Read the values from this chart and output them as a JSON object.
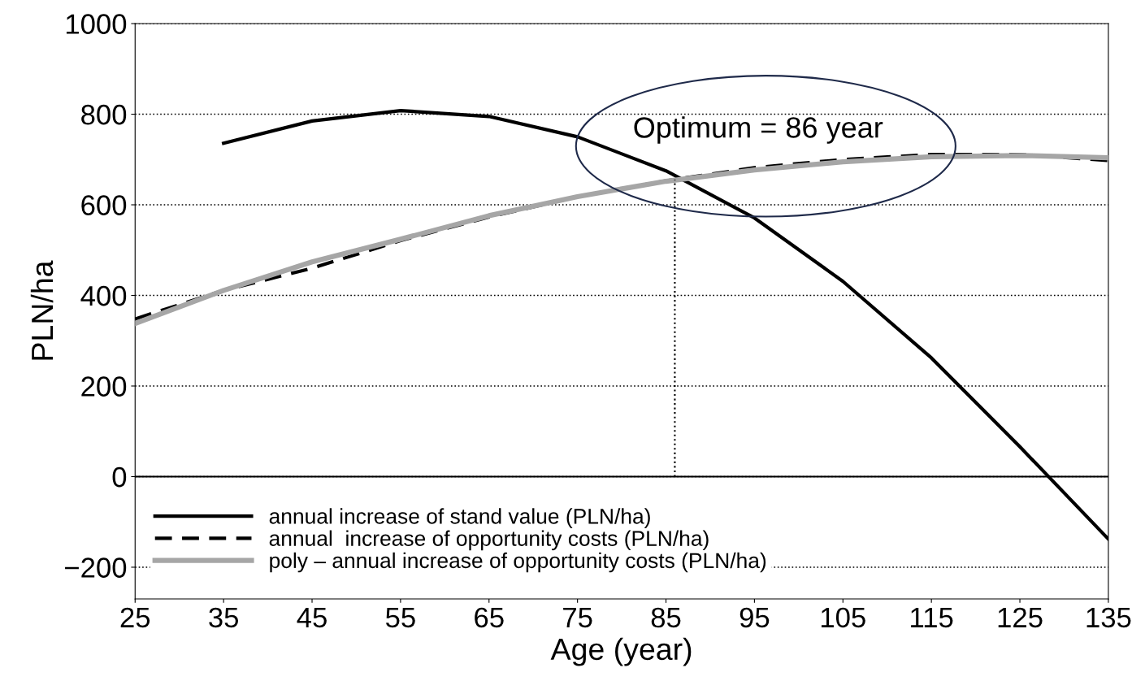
{
  "chart_data": {
    "type": "line",
    "xlabel": "Age (year)",
    "ylabel": "PLN/ha",
    "x": [
      25,
      35,
      45,
      55,
      65,
      75,
      85,
      95,
      105,
      115,
      125,
      135
    ],
    "series": [
      {
        "name": "annual increase of stand value (PLN/ha)",
        "color": "#000000",
        "line_style": "solid",
        "values": [
          null,
          736,
          785,
          808,
          795,
          750,
          675,
          571,
          431,
          262,
          66,
          -138
        ]
      },
      {
        "name": "annual  increase of opportunity costs (PLN/ha)",
        "color": "#000000",
        "line_style": "dashed",
        "values": [
          348,
          411,
          460,
          521,
          573,
          618,
          653,
          682,
          700,
          711,
          711,
          698
        ]
      },
      {
        "name": "poly – annual increase of opportunity costs (PLN/ha)",
        "color": "#a6a6a6",
        "line_style": "solid",
        "values": [
          338,
          411,
          474,
          524,
          576,
          618,
          652,
          677,
          695,
          706,
          709,
          704
        ]
      },
      {
        "x": [
          86,
          86
        ],
        "color": "#000000",
        "line_style": "dotted",
        "values": [
          0,
          655
        ]
      }
    ],
    "annotations": [
      "Optimum = 86 year"
    ],
    "ref_lines": [
      {
        "axis": "y",
        "value": 0,
        "color": "#000000",
        "line_style": "solid"
      }
    ],
    "xlim": [
      25,
      135
    ],
    "ylim": [
      -270,
      1000
    ],
    "xticks": [
      25,
      35,
      45,
      55,
      65,
      75,
      85,
      95,
      105,
      115,
      125,
      135
    ],
    "yticks": [
      {
        "value": -200,
        "label": "−200"
      },
      0,
      200,
      400,
      600,
      800,
      1000
    ],
    "grid": "y",
    "legend": "bottom left",
    "marker": "none"
  }
}
